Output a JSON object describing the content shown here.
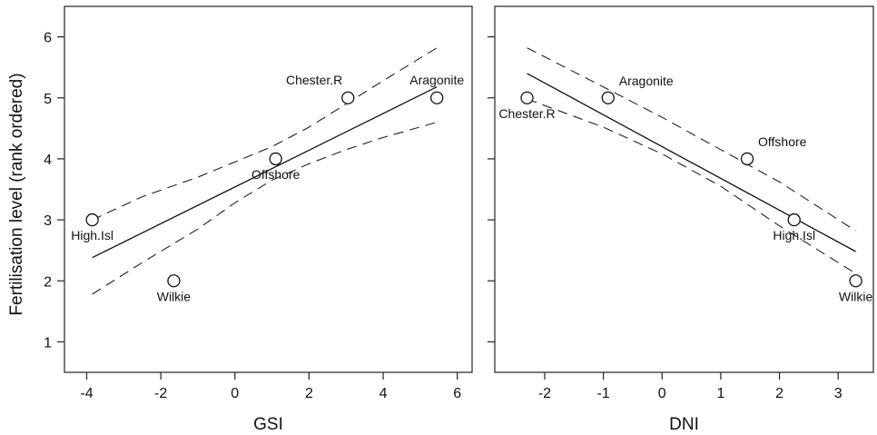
{
  "ylabel": "Fertilisation level (rank ordered)",
  "chart_data": [
    {
      "type": "scatter",
      "xlabel": "GSI",
      "ylabel": "Fertilisation level (rank ordered)",
      "xlim": [
        -4.6,
        6.4
      ],
      "ylim": [
        0.5,
        6.5
      ],
      "xticks": [
        -4,
        -2,
        0,
        2,
        4,
        6
      ],
      "yticks": [
        1,
        2,
        3,
        4,
        5,
        6
      ],
      "grid": false,
      "points": [
        {
          "label": "High.Isl",
          "x": -3.85,
          "y": 3,
          "label_pos": "below"
        },
        {
          "label": "Wilkie",
          "x": -1.65,
          "y": 2,
          "label_pos": "below"
        },
        {
          "label": "Offshore",
          "x": 1.1,
          "y": 4,
          "label_pos": "below"
        },
        {
          "label": "Chester.R",
          "x": 3.05,
          "y": 5,
          "label_pos": "above-left"
        },
        {
          "label": "Aragonite",
          "x": 5.45,
          "y": 5,
          "label_pos": "above"
        }
      ],
      "fit": {
        "x": [
          -3.85,
          5.45
        ],
        "y": [
          2.38,
          5.18
        ]
      },
      "ci_upper": {
        "x": [
          -3.85,
          -2.5,
          -1,
          0,
          1,
          2,
          3,
          4,
          5.45
        ],
        "y": [
          3.0,
          3.38,
          3.7,
          3.95,
          4.2,
          4.52,
          4.9,
          5.28,
          5.82
        ]
      },
      "ci_lower": {
        "x": [
          -3.85,
          -2.5,
          -1,
          0,
          1,
          2,
          3,
          4,
          5.45
        ],
        "y": [
          1.78,
          2.3,
          2.85,
          3.28,
          3.65,
          3.92,
          4.15,
          4.35,
          4.6
        ]
      }
    },
    {
      "type": "scatter",
      "xlabel": "DNI",
      "ylabel": "",
      "xlim": [
        -2.85,
        3.6
      ],
      "ylim": [
        0.5,
        6.5
      ],
      "xticks": [
        -2,
        -1,
        0,
        1,
        2,
        3
      ],
      "yticks": [
        1,
        2,
        3,
        4,
        5,
        6
      ],
      "grid": false,
      "points": [
        {
          "label": "Chester.R",
          "x": -2.3,
          "y": 5,
          "label_pos": "below"
        },
        {
          "label": "Aragonite",
          "x": -0.92,
          "y": 5,
          "label_pos": "above-right"
        },
        {
          "label": "Offshore",
          "x": 1.45,
          "y": 4,
          "label_pos": "above-right"
        },
        {
          "label": "High.Isl",
          "x": 2.25,
          "y": 3,
          "label_pos": "below"
        },
        {
          "label": "Wilkie",
          "x": 3.3,
          "y": 2,
          "label_pos": "below"
        }
      ],
      "fit": {
        "x": [
          -2.3,
          3.3
        ],
        "y": [
          5.4,
          2.48
        ]
      },
      "ci_upper": {
        "x": [
          -2.3,
          -1,
          0,
          1,
          2,
          3.3
        ],
        "y": [
          5.82,
          5.18,
          4.68,
          4.15,
          3.62,
          2.82
        ]
      },
      "ci_lower": {
        "x": [
          -2.3,
          -1,
          0,
          1,
          2,
          3.3
        ],
        "y": [
          4.98,
          4.52,
          4.08,
          3.55,
          2.9,
          2.12
        ]
      }
    }
  ]
}
